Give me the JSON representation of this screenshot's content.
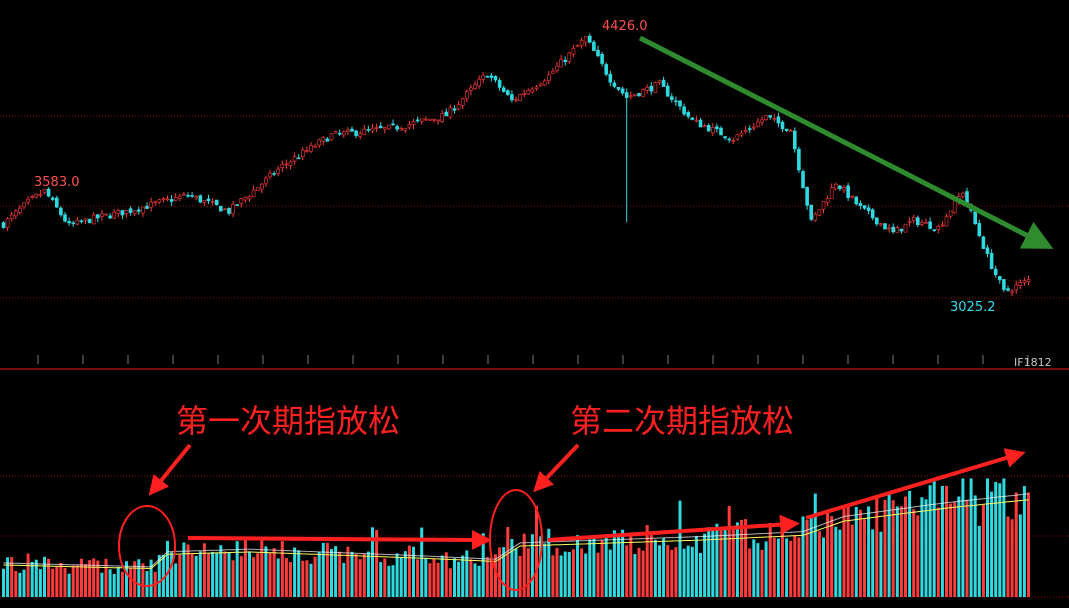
{
  "instrument": "IF1812",
  "colors": {
    "background": "#000000",
    "up": "#ff3b3b",
    "down": "#2fd9e0",
    "grid": "#8a1010",
    "separator": "#a01010",
    "ma_line": "#ffff66",
    "annotation": "#ff2020",
    "trend_arrow": "#2e8b2e",
    "label_high": "#ff5050",
    "label_low": "#33ddee"
  },
  "chart_data": [
    {
      "type": "candlestick",
      "panel": "price",
      "annotations": {
        "left_high": "3583.0",
        "peak_high": "4426.0",
        "low": "3025.2"
      },
      "key_points": [
        {
          "bar": 0,
          "close": 3400
        },
        {
          "bar": 6,
          "close": 3520
        },
        {
          "bar": 10,
          "close": 3583
        },
        {
          "bar": 16,
          "close": 3390
        },
        {
          "bar": 22,
          "close": 3430
        },
        {
          "bar": 30,
          "close": 3470
        },
        {
          "bar": 45,
          "close": 3560
        },
        {
          "bar": 55,
          "close": 3470
        },
        {
          "bar": 68,
          "close": 3720
        },
        {
          "bar": 80,
          "close": 3890
        },
        {
          "bar": 95,
          "close": 3930
        },
        {
          "bar": 108,
          "close": 4000
        },
        {
          "bar": 118,
          "close": 4230
        },
        {
          "bar": 124,
          "close": 4080
        },
        {
          "bar": 133,
          "close": 4220
        },
        {
          "bar": 142,
          "close": 4426
        },
        {
          "bar": 148,
          "close": 4200
        },
        {
          "bar": 152,
          "close": 4100
        },
        {
          "bar": 160,
          "close": 4170
        },
        {
          "bar": 168,
          "close": 3970
        },
        {
          "bar": 178,
          "close": 3870
        },
        {
          "bar": 186,
          "close": 3990
        },
        {
          "bar": 192,
          "close": 3920
        },
        {
          "bar": 197,
          "close": 3410
        },
        {
          "bar": 203,
          "close": 3630
        },
        {
          "bar": 209,
          "close": 3490
        },
        {
          "bar": 217,
          "close": 3350
        },
        {
          "bar": 222,
          "close": 3420
        },
        {
          "bar": 228,
          "close": 3380
        },
        {
          "bar": 234,
          "close": 3580
        },
        {
          "bar": 240,
          "close": 3220
        },
        {
          "bar": 244,
          "close": 3025.2
        },
        {
          "bar": 250,
          "close": 3090
        }
      ]
    },
    {
      "type": "bar",
      "panel": "volume",
      "series_ma": true,
      "key_points": [
        {
          "bar": 0,
          "level": 0.27
        },
        {
          "bar": 36,
          "level": 0.24
        },
        {
          "bar": 40,
          "level": 0.36
        },
        {
          "bar": 60,
          "level": 0.38
        },
        {
          "bar": 100,
          "level": 0.33
        },
        {
          "bar": 120,
          "level": 0.3
        },
        {
          "bar": 126,
          "level": 0.43
        },
        {
          "bar": 170,
          "level": 0.48
        },
        {
          "bar": 195,
          "level": 0.52
        },
        {
          "bar": 205,
          "level": 0.64
        },
        {
          "bar": 230,
          "level": 0.75
        },
        {
          "bar": 250,
          "level": 0.82
        }
      ]
    }
  ],
  "volume_annotations": {
    "first_label": "第一次期指放松",
    "second_label": "第二次期指放松"
  }
}
